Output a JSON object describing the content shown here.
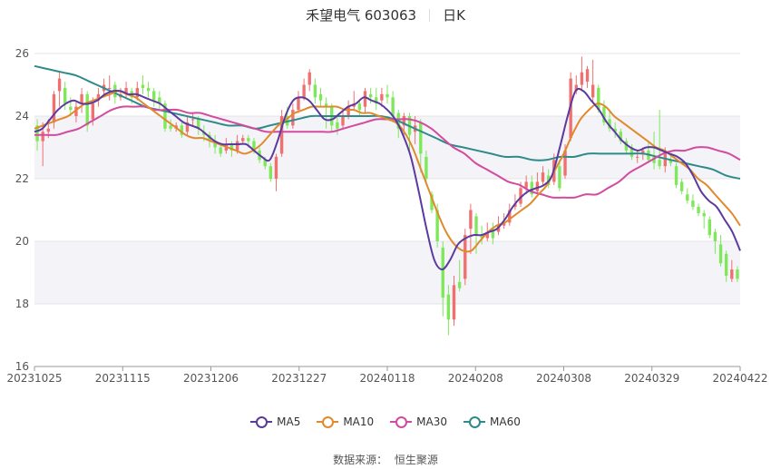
{
  "header": {
    "stock_name": "禾望电气 603063",
    "period": "日K"
  },
  "source": {
    "label": "数据来源：",
    "name": "恒生聚源"
  },
  "colors": {
    "up": "#f07070",
    "down": "#7ee85a",
    "ma5": "#5b3a9e",
    "ma10": "#e08a2c",
    "ma30": "#d24b9e",
    "ma60": "#2f8a8a"
  },
  "chart_data": {
    "type": "candlestick",
    "ylim": [
      16,
      26
    ],
    "yticks": [
      16,
      18,
      20,
      22,
      24,
      26
    ],
    "xticks": [
      "20231025",
      "20231115",
      "20231206",
      "20231227",
      "20240118",
      "20240208",
      "20240308",
      "20240329",
      "20240422"
    ],
    "legend": [
      "MA5",
      "MA10",
      "MA30",
      "MA60"
    ],
    "legend_position": "bottom",
    "grid": true,
    "candles": [
      [
        23.7,
        23.2,
        23.9,
        22.9
      ],
      [
        23.2,
        23.5,
        23.8,
        22.4
      ],
      [
        23.5,
        23.6,
        23.9,
        23.3
      ],
      [
        23.8,
        24.7,
        24.8,
        23.6
      ],
      [
        24.8,
        25.2,
        25.4,
        24.3
      ],
      [
        24.9,
        24.4,
        25.1,
        24.2
      ],
      [
        24.3,
        24.2,
        24.6,
        24.0
      ],
      [
        24.0,
        24.3,
        24.5,
        23.8
      ],
      [
        24.4,
        24.7,
        24.9,
        24.1
      ],
      [
        24.7,
        23.7,
        24.8,
        23.5
      ],
      [
        23.9,
        24.4,
        24.6,
        23.7
      ],
      [
        24.5,
        24.7,
        24.9,
        24.3
      ],
      [
        24.8,
        25.0,
        25.2,
        24.6
      ],
      [
        24.9,
        24.9,
        25.3,
        24.5
      ],
      [
        25.0,
        24.6,
        25.1,
        24.4
      ],
      [
        24.6,
        24.7,
        24.9,
        24.5
      ],
      [
        24.7,
        24.9,
        25.1,
        24.6
      ],
      [
        24.8,
        24.6,
        24.9,
        24.4
      ],
      [
        24.6,
        24.9,
        25.1,
        24.5
      ],
      [
        25.0,
        24.9,
        25.3,
        24.7
      ],
      [
        24.9,
        24.8,
        25.1,
        24.6
      ],
      [
        24.8,
        24.5,
        24.9,
        24.3
      ],
      [
        24.6,
        24.4,
        24.8,
        24.2
      ],
      [
        24.4,
        23.6,
        24.5,
        23.5
      ],
      [
        23.7,
        23.6,
        23.9,
        23.5
      ],
      [
        23.6,
        23.7,
        23.8,
        23.5
      ],
      [
        23.7,
        23.4,
        23.8,
        23.3
      ],
      [
        23.5,
        23.8,
        24.0,
        23.4
      ],
      [
        23.9,
        23.9,
        24.1,
        23.7
      ],
      [
        23.9,
        23.6,
        24.0,
        23.4
      ],
      [
        23.5,
        23.4,
        23.7,
        23.2
      ],
      [
        23.4,
        23.2,
        23.5,
        23.0
      ],
      [
        23.2,
        23.0,
        23.4,
        22.8
      ],
      [
        23.0,
        22.8,
        23.1,
        22.7
      ],
      [
        22.9,
        23.1,
        23.3,
        22.8
      ],
      [
        23.1,
        22.9,
        23.2,
        22.7
      ],
      [
        22.9,
        23.2,
        23.4,
        22.8
      ],
      [
        23.2,
        23.3,
        23.4,
        23.1
      ],
      [
        23.3,
        23.2,
        23.4,
        23.0
      ],
      [
        23.2,
        22.9,
        23.3,
        22.8
      ],
      [
        22.9,
        22.6,
        23.0,
        22.5
      ],
      [
        22.6,
        22.4,
        22.7,
        22.3
      ],
      [
        22.4,
        22.0,
        22.5,
        21.9
      ],
      [
        22.0,
        22.7,
        22.8,
        21.6
      ],
      [
        22.8,
        24.0,
        24.2,
        22.7
      ],
      [
        24.0,
        23.7,
        24.3,
        23.6
      ],
      [
        23.7,
        24.2,
        24.4,
        23.6
      ],
      [
        24.2,
        24.6,
        24.8,
        24.1
      ],
      [
        24.6,
        25.0,
        25.2,
        24.5
      ],
      [
        25.0,
        25.4,
        25.5,
        24.8
      ],
      [
        25.0,
        24.6,
        25.2,
        24.4
      ],
      [
        24.7,
        24.5,
        24.9,
        24.3
      ],
      [
        24.4,
        24.3,
        24.6,
        23.6
      ],
      [
        24.3,
        23.7,
        24.4,
        23.5
      ],
      [
        23.8,
        23.6,
        24.0,
        23.4
      ],
      [
        23.7,
        24.0,
        24.2,
        23.6
      ],
      [
        24.0,
        24.3,
        24.5,
        23.9
      ],
      [
        24.3,
        24.4,
        24.8,
        24.2
      ],
      [
        24.4,
        24.2,
        24.5,
        24.0
      ],
      [
        24.3,
        24.8,
        24.9,
        24.1
      ],
      [
        24.7,
        24.6,
        24.9,
        24.4
      ],
      [
        24.6,
        24.4,
        24.9,
        24.2
      ],
      [
        24.5,
        24.7,
        24.9,
        24.3
      ],
      [
        24.7,
        24.6,
        25.0,
        24.4
      ],
      [
        24.6,
        24.0,
        24.8,
        23.8
      ],
      [
        24.1,
        23.6,
        24.2,
        23.3
      ],
      [
        23.7,
        24.0,
        24.1,
        23.4
      ],
      [
        24.0,
        23.4,
        24.1,
        22.9
      ],
      [
        23.5,
        23.7,
        24.0,
        23.1
      ],
      [
        23.8,
        22.8,
        23.9,
        22.2
      ],
      [
        22.7,
        22.0,
        22.9,
        21.9
      ],
      [
        21.5,
        21.0,
        21.6,
        20.9
      ],
      [
        21.0,
        20.0,
        21.2,
        19.8
      ],
      [
        19.8,
        18.2,
        20.0,
        17.6
      ],
      [
        18.3,
        17.5,
        18.6,
        17.0
      ],
      [
        17.5,
        18.6,
        18.9,
        17.3
      ],
      [
        18.7,
        18.5,
        19.4,
        18.4
      ],
      [
        18.8,
        20.2,
        20.4,
        18.6
      ],
      [
        20.4,
        21.0,
        21.2,
        19.6
      ],
      [
        20.8,
        20.2,
        20.9,
        19.6
      ],
      [
        20.2,
        20.1,
        20.5,
        19.9
      ],
      [
        20.1,
        20.3,
        20.6,
        20.0
      ],
      [
        20.4,
        20.1,
        20.6,
        19.9
      ],
      [
        20.3,
        20.5,
        20.8,
        20.2
      ],
      [
        20.5,
        20.6,
        20.9,
        20.4
      ],
      [
        20.6,
        21.0,
        21.2,
        20.5
      ],
      [
        21.1,
        21.2,
        21.5,
        21.0
      ],
      [
        21.2,
        21.7,
        21.9,
        21.1
      ],
      [
        21.7,
        21.9,
        22.1,
        21.5
      ],
      [
        21.9,
        21.5,
        22.1,
        21.4
      ],
      [
        21.6,
        21.9,
        22.2,
        21.5
      ],
      [
        21.9,
        22.2,
        22.4,
        21.8
      ],
      [
        22.1,
        21.8,
        22.3,
        21.7
      ],
      [
        21.9,
        22.6,
        22.8,
        21.8
      ],
      [
        22.4,
        21.7,
        22.6,
        21.6
      ],
      [
        22.1,
        22.9,
        23.1,
        22.0
      ],
      [
        23.3,
        25.2,
        25.4,
        23.2
      ],
      [
        24.8,
        25.0,
        25.3,
        24.7
      ],
      [
        25.0,
        25.4,
        25.9,
        24.8
      ],
      [
        25.1,
        25.5,
        25.6,
        24.9
      ],
      [
        24.6,
        25.0,
        25.8,
        24.4
      ],
      [
        24.9,
        24.2,
        25.0,
        24.1
      ],
      [
        24.3,
        23.8,
        24.5,
        23.7
      ],
      [
        23.9,
        23.6,
        24.2,
        23.5
      ],
      [
        23.6,
        23.5,
        23.8,
        23.3
      ],
      [
        23.5,
        23.2,
        23.6,
        23.1
      ],
      [
        23.2,
        22.9,
        23.3,
        22.8
      ],
      [
        23.0,
        22.7,
        23.1,
        22.6
      ],
      [
        22.7,
        22.7,
        22.9,
        22.5
      ],
      [
        22.8,
        22.9,
        23.0,
        22.6
      ],
      [
        22.9,
        22.6,
        23.2,
        22.5
      ],
      [
        22.7,
        22.5,
        23.5,
        22.3
      ],
      [
        22.6,
        22.4,
        24.2,
        22.3
      ],
      [
        22.4,
        22.9,
        23.0,
        22.2
      ],
      [
        22.6,
        22.5,
        22.8,
        22.4
      ],
      [
        22.4,
        21.8,
        22.5,
        21.7
      ],
      [
        21.9,
        21.6,
        22.0,
        21.5
      ],
      [
        21.5,
        21.3,
        21.7,
        21.2
      ],
      [
        21.3,
        21.1,
        21.5,
        21.0
      ],
      [
        21.1,
        20.9,
        21.2,
        20.8
      ],
      [
        20.9,
        20.8,
        21.0,
        20.4
      ],
      [
        20.7,
        20.2,
        20.8,
        20.1
      ],
      [
        20.3,
        20.0,
        20.4,
        19.6
      ],
      [
        19.9,
        19.3,
        20.2,
        19.2
      ],
      [
        19.6,
        18.9,
        19.7,
        18.7
      ],
      [
        18.8,
        19.1,
        19.4,
        18.7
      ],
      [
        19.1,
        18.8,
        19.2,
        18.7
      ]
    ],
    "ma": {
      "MA5": [
        23.5,
        23.6,
        23.9,
        24.2,
        24.4,
        24.5,
        24.4,
        24.4,
        24.5,
        24.7,
        24.8,
        24.8,
        24.7,
        24.7,
        24.6,
        24.5,
        24.4,
        24.2,
        24.0,
        23.8,
        23.7,
        23.6,
        23.4,
        23.2,
        23.1,
        23.1,
        23.1,
        23.1,
        22.9,
        22.7,
        22.6,
        23.2,
        24.0,
        24.5,
        24.6,
        24.5,
        24.2,
        23.9,
        23.9,
        24.1,
        24.3,
        24.4,
        24.6,
        24.5,
        24.4,
        24.2,
        23.9,
        23.4,
        22.7,
        21.6,
        20.4,
        19.4,
        19.1,
        19.4,
        19.9,
        20.1,
        20.2,
        20.2,
        20.3,
        20.4,
        20.7,
        21.1,
        21.4,
        21.6,
        21.7,
        21.8,
        22.1,
        23.0,
        24.0,
        24.8,
        24.8,
        24.5,
        24.2,
        23.8,
        23.5,
        23.2,
        23.0,
        22.9,
        23.0,
        23.0,
        22.9,
        22.8,
        22.7,
        22.5,
        22.1,
        21.6,
        21.3,
        21.1,
        20.7,
        20.3,
        19.7
      ],
      "MA10": [
        23.6,
        23.7,
        23.8,
        23.9,
        24.0,
        24.2,
        24.4,
        24.5,
        24.6,
        24.7,
        24.8,
        24.7,
        24.6,
        24.4,
        24.2,
        24.0,
        23.8,
        23.6,
        23.4,
        23.3,
        23.3,
        23.2,
        23.1,
        23.0,
        22.9,
        22.8,
        22.9,
        23.1,
        23.4,
        23.7,
        23.9,
        24.1,
        24.2,
        24.3,
        24.3,
        24.3,
        24.3,
        24.2,
        24.2,
        24.1,
        24.1,
        24.0,
        23.9,
        23.8,
        23.5,
        23.0,
        22.3,
        21.6,
        20.9,
        20.3,
        19.9,
        19.7,
        19.7,
        20.0,
        20.3,
        20.5,
        20.6,
        20.8,
        21.0,
        21.2,
        21.5,
        21.8,
        22.3,
        22.8,
        23.4,
        23.9,
        24.2,
        24.4,
        24.3,
        24.0,
        23.8,
        23.6,
        23.4,
        23.2,
        23.0,
        22.9,
        22.7,
        22.5,
        22.3,
        22.0,
        21.8,
        21.5,
        21.2,
        20.9,
        20.5
      ],
      "MA30": [
        23.4,
        23.4,
        23.4,
        23.5,
        23.6,
        23.8,
        24.0,
        24.2,
        24.3,
        24.3,
        24.3,
        24.2,
        24.2,
        24.2,
        24.1,
        24.1,
        24.0,
        23.9,
        23.8,
        23.7,
        23.6,
        23.5,
        23.5,
        23.5,
        23.5,
        23.5,
        23.5,
        23.5,
        23.6,
        23.7,
        23.8,
        23.9,
        23.9,
        23.9,
        23.9,
        23.8,
        23.6,
        23.3,
        23.0,
        22.8,
        22.5,
        22.3,
        22.1,
        21.9,
        21.8,
        21.6,
        21.5,
        21.4,
        21.4,
        21.4,
        21.5,
        21.5,
        21.7,
        21.9,
        22.2,
        22.4,
        22.6,
        22.8,
        22.9,
        22.9,
        23.0,
        23.0,
        22.9,
        22.8,
        22.6
      ],
      "MA60": [
        25.6,
        25.5,
        25.4,
        25.3,
        25.1,
        24.9,
        24.7,
        24.5,
        24.3,
        24.2,
        24.1,
        24.0,
        23.9,
        23.8,
        23.7,
        23.7,
        23.6,
        23.7,
        23.8,
        23.9,
        24.0,
        24.0,
        24.0,
        24.0,
        24.0,
        24.0,
        23.9,
        23.7,
        23.5,
        23.3,
        23.1,
        23.0,
        22.9,
        22.8,
        22.7,
        22.7,
        22.6,
        22.6,
        22.7,
        22.7,
        22.8,
        22.8,
        22.8,
        22.8,
        22.8,
        22.7,
        22.6,
        22.5,
        22.4,
        22.3,
        22.1,
        22.0
      ]
    }
  }
}
